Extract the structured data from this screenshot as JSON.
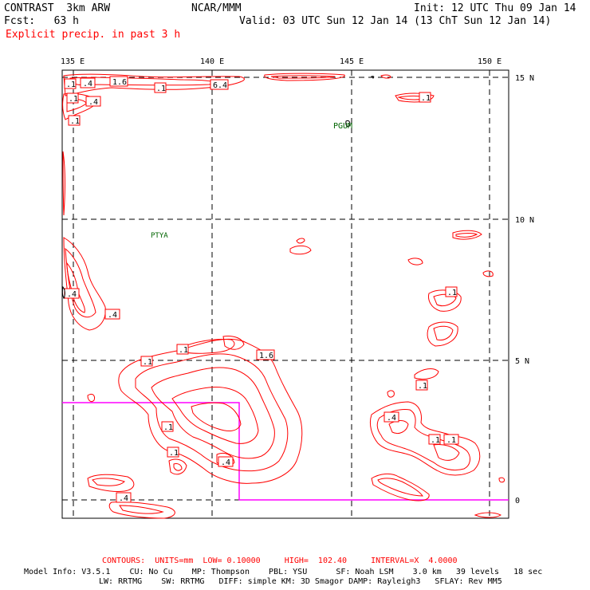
{
  "header": {
    "title_left": "CONTRAST  3km ARW",
    "title_center": "NCAR/MMM",
    "init": "Init: 12 UTC Thu 09 Jan 14",
    "fcst": "Fcst:   63 h",
    "valid": "Valid: 03 UTC Sun 12 Jan 14 (13 ChT Sun 12 Jan 14)",
    "field": "Explicit precip. in past 3 h"
  },
  "axes": {
    "lon_labels": [
      "135 E",
      "140 E",
      "145 E",
      "150 E"
    ],
    "lat_labels": [
      "15 N",
      "10 N",
      "5 N",
      "0"
    ]
  },
  "stations": [
    "PGUM",
    "PTYA"
  ],
  "contour_labels": [
    ".1",
    ".4",
    "1.6",
    ".1",
    "6.4",
    ".4",
    ".1",
    ".1",
    ".4",
    ".1",
    ".1",
    "1.6",
    ".1",
    ".1",
    ".1",
    ".4",
    ".1",
    ".4",
    ".1",
    ".1",
    ".4",
    ".1",
    ".4"
  ],
  "footer": {
    "contours": "CONTOURS:  UNITS=mm  LOW= 0.10000     HIGH=  102.40     INTERVAL=X  4.0000",
    "model_line1": "Model Info: V3.5.1    CU: No Cu    MP: Thompson    PBL: YSU      SF: Noah LSM    3.0 km   39 levels   18 sec",
    "model_line2": "LW: RRTMG    SW: RRTMG   DIFF: simple KM: 3D Smagor DAMP: Rayleigh3   SFLAY: Rev MM5"
  },
  "colors": {
    "precip_contour": "#ff0000",
    "land_outline": "#000000",
    "boundary": "#ff00ff",
    "station_label": "#006400"
  }
}
